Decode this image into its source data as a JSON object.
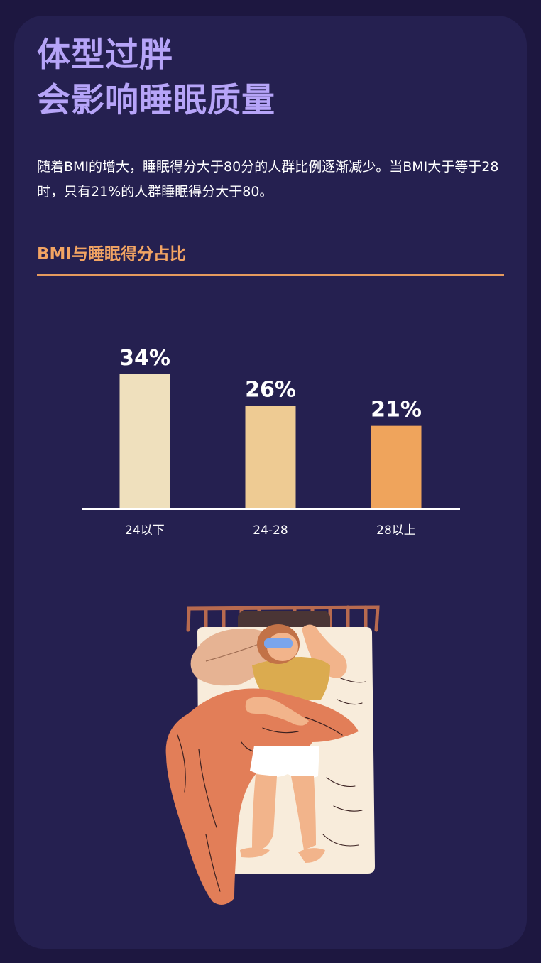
{
  "title_lines": [
    "体型过胖",
    "会影响睡眠质量"
  ],
  "description": "随着BMI的增大，睡眠得分大于80分的人群比例逐渐减少。当BMI大于等于28时，只有21%的人群睡眠得分大于80。",
  "subtitle": "BMI与睡眠得分占比",
  "colors": {
    "background": "#1d1740",
    "card": "#252050",
    "title": "#b6a4f8",
    "accent": "#f2a463",
    "bars": [
      "#efe0bd",
      "#eecb93",
      "#efa45c"
    ]
  },
  "chart_data": {
    "type": "bar",
    "title": "BMI与睡眠得分占比",
    "categories": [
      "24以下",
      "24-28",
      "28以上"
    ],
    "values": [
      34,
      26,
      21
    ],
    "value_labels": [
      "34%",
      "26%",
      "21%"
    ],
    "ylim": [
      0,
      34
    ],
    "grid": false,
    "legend": "none",
    "xlabel": "",
    "ylabel": ""
  },
  "illustration": {
    "icon": "person-sleeping-in-bed-icon"
  }
}
